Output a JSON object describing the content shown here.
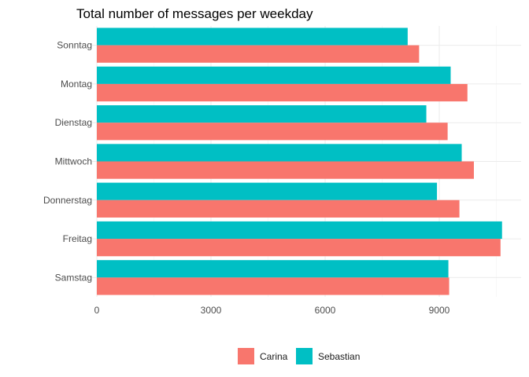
{
  "chart_data": {
    "type": "bar",
    "orientation": "horizontal",
    "title": "Total number of messages per weekday",
    "xlabel": "",
    "ylabel": "",
    "categories": [
      "Sonntag",
      "Montag",
      "Dienstag",
      "Mittwoch",
      "Donnerstag",
      "Freitag",
      "Samstag"
    ],
    "series": [
      {
        "name": "Carina",
        "color": "#F8766D",
        "values": [
          8470,
          9740,
          9220,
          9910,
          9530,
          10610,
          9260
        ]
      },
      {
        "name": "Sebastian",
        "color": "#00BFC4",
        "values": [
          8170,
          9300,
          8660,
          9590,
          8940,
          10650,
          9240
        ]
      }
    ],
    "xlim": [
      0,
      11000
    ],
    "xticks": [
      0,
      3000,
      6000,
      9000
    ],
    "xtick_labels": [
      "0",
      "3000",
      "6000",
      "9000"
    ],
    "grid": true,
    "legend_position": "bottom"
  }
}
